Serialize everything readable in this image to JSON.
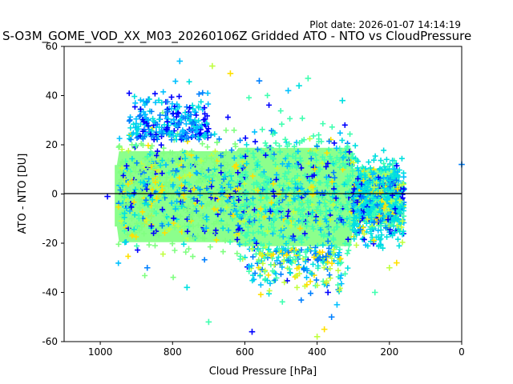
{
  "chart_data": {
    "type": "scatter",
    "annotation": "Plot date: 2026-01-07 14:14:19",
    "title": "S-O3M_GOME_VOD_XX_M03_20260106Z Gridded ATO - NTO vs CloudPressure",
    "xlabel": "Cloud Pressure [hPa]",
    "ylabel": "ATO - NTO [DU]",
    "xlim": [
      1100,
      0
    ],
    "ylim": [
      -60,
      60
    ],
    "x_ticks": [
      1000,
      800,
      600,
      400,
      200,
      0
    ],
    "y_ticks": [
      -60,
      -40,
      -20,
      0,
      20,
      40,
      60
    ],
    "reference_line_y": 0,
    "marker": "+",
    "colors": {
      "dark_blue": "#0000ff",
      "blue": "#0080ff",
      "light_blue": "#00c0ff",
      "cyan": "#00e0e0",
      "aquamarine": "#40ffb0",
      "light_green": "#80ff80",
      "yellow_green": "#c0ff40",
      "yellow": "#ffe000"
    },
    "bulk_color": "#80ff80",
    "clusters": [
      {
        "x_range": [
          950,
          620
        ],
        "y_center": 1,
        "y_spread": 12,
        "dominant": "light_green"
      },
      {
        "x_range": [
          620,
          300
        ],
        "y_center": -2,
        "y_spread": 14,
        "dominant": "aquamarine"
      },
      {
        "x_range": [
          300,
          160
        ],
        "y_center": -3,
        "y_spread": 8,
        "dominant": "cyan"
      }
    ],
    "outliers": [
      {
        "x": 980,
        "y": -1
      },
      {
        "x": 870,
        "y": -30
      },
      {
        "x": 780,
        "y": 54
      },
      {
        "x": 760,
        "y": -38
      },
      {
        "x": 700,
        "y": -52
      },
      {
        "x": 690,
        "y": 52
      },
      {
        "x": 640,
        "y": 49
      },
      {
        "x": 580,
        "y": -56
      },
      {
        "x": 560,
        "y": 46
      },
      {
        "x": 480,
        "y": 42
      },
      {
        "x": 450,
        "y": 44
      },
      {
        "x": 425,
        "y": 47
      },
      {
        "x": 400,
        "y": -58
      },
      {
        "x": 380,
        "y": -55
      },
      {
        "x": 370,
        "y": -40
      },
      {
        "x": 360,
        "y": -50
      },
      {
        "x": 345,
        "y": -45
      },
      {
        "x": 330,
        "y": 38
      },
      {
        "x": 240,
        "y": -40
      },
      {
        "x": 200,
        "y": -30
      },
      {
        "x": 180,
        "y": -28
      },
      {
        "x": 160,
        "y": 2
      },
      {
        "x": 0,
        "y": 12
      }
    ]
  }
}
